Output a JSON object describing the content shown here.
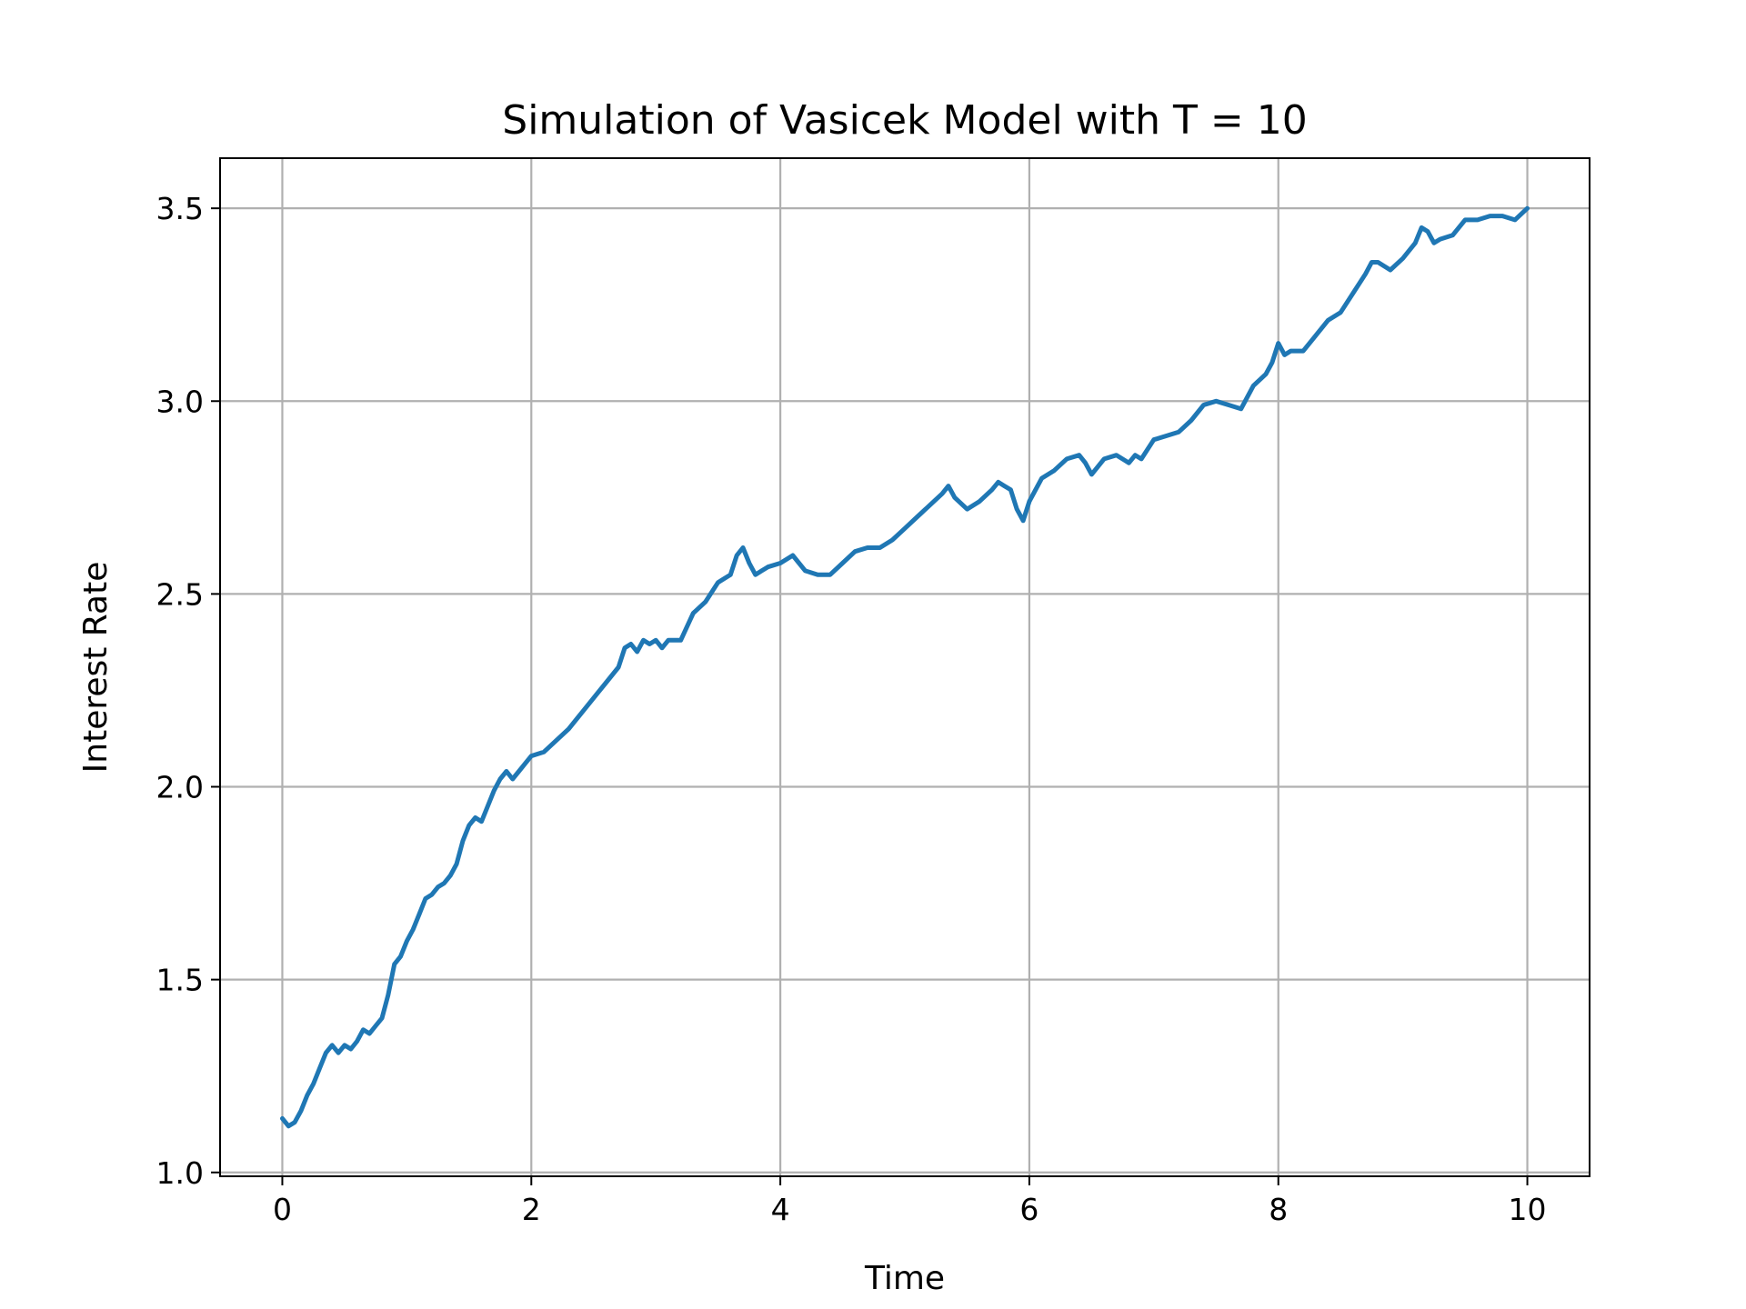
{
  "chart_data": {
    "type": "line",
    "title": "Simulation of Vasicek Model with T = 10",
    "xlabel": "Time",
    "ylabel": "Interest Rate",
    "xlim": [
      -0.5,
      10.5
    ],
    "ylim": [
      0.99,
      3.63
    ],
    "grid": true,
    "x_ticks": [
      {
        "value": 0,
        "label": "0"
      },
      {
        "value": 2,
        "label": "2"
      },
      {
        "value": 4,
        "label": "4"
      },
      {
        "value": 6,
        "label": "6"
      },
      {
        "value": 8,
        "label": "8"
      },
      {
        "value": 10,
        "label": "10"
      }
    ],
    "y_ticks": [
      {
        "value": 1.0,
        "label": "1.0"
      },
      {
        "value": 1.5,
        "label": "1.5"
      },
      {
        "value": 2.0,
        "label": "2.0"
      },
      {
        "value": 2.5,
        "label": "2.5"
      },
      {
        "value": 3.0,
        "label": "3.0"
      },
      {
        "value": 3.5,
        "label": "3.5"
      }
    ],
    "series": [
      {
        "color": "#1f77b4",
        "x": [
          0,
          0.05,
          0.1,
          0.15,
          0.2,
          0.25,
          0.3,
          0.35,
          0.4,
          0.45,
          0.5,
          0.55,
          0.6,
          0.65,
          0.7,
          0.75,
          0.8,
          0.85,
          0.9,
          0.95,
          1.0,
          1.05,
          1.1,
          1.15,
          1.2,
          1.25,
          1.3,
          1.35,
          1.4,
          1.45,
          1.5,
          1.55,
          1.6,
          1.65,
          1.7,
          1.75,
          1.8,
          1.85,
          1.9,
          1.95,
          2.0,
          2.1,
          2.2,
          2.3,
          2.4,
          2.5,
          2.6,
          2.7,
          2.75,
          2.8,
          2.85,
          2.9,
          2.95,
          3.0,
          3.05,
          3.1,
          3.2,
          3.3,
          3.4,
          3.5,
          3.6,
          3.65,
          3.7,
          3.75,
          3.8,
          3.85,
          3.9,
          4.0,
          4.1,
          4.2,
          4.3,
          4.4,
          4.5,
          4.6,
          4.7,
          4.8,
          4.9,
          5.0,
          5.1,
          5.2,
          5.3,
          5.35,
          5.4,
          5.5,
          5.6,
          5.7,
          5.75,
          5.8,
          5.85,
          5.9,
          5.95,
          6.0,
          6.1,
          6.2,
          6.3,
          6.4,
          6.45,
          6.5,
          6.6,
          6.7,
          6.8,
          6.85,
          6.9,
          7.0,
          7.1,
          7.2,
          7.3,
          7.4,
          7.5,
          7.6,
          7.7,
          7.8,
          7.9,
          7.95,
          8.0,
          8.05,
          8.1,
          8.2,
          8.3,
          8.4,
          8.5,
          8.6,
          8.7,
          8.75,
          8.8,
          8.9,
          9.0,
          9.1,
          9.15,
          9.2,
          9.25,
          9.3,
          9.4,
          9.5,
          9.6,
          9.7,
          9.8,
          9.9,
          10.0
        ],
        "y": [
          1.14,
          1.12,
          1.13,
          1.16,
          1.2,
          1.23,
          1.27,
          1.31,
          1.33,
          1.31,
          1.33,
          1.32,
          1.34,
          1.37,
          1.36,
          1.38,
          1.4,
          1.46,
          1.54,
          1.56,
          1.6,
          1.63,
          1.67,
          1.71,
          1.72,
          1.74,
          1.75,
          1.77,
          1.8,
          1.86,
          1.9,
          1.92,
          1.91,
          1.95,
          1.99,
          2.02,
          2.04,
          2.02,
          2.04,
          2.06,
          2.08,
          2.09,
          2.12,
          2.15,
          2.19,
          2.23,
          2.27,
          2.31,
          2.36,
          2.37,
          2.35,
          2.38,
          2.37,
          2.38,
          2.36,
          2.38,
          2.38,
          2.45,
          2.48,
          2.53,
          2.55,
          2.6,
          2.62,
          2.58,
          2.55,
          2.56,
          2.57,
          2.58,
          2.6,
          2.56,
          2.55,
          2.55,
          2.58,
          2.61,
          2.62,
          2.62,
          2.64,
          2.67,
          2.7,
          2.73,
          2.76,
          2.78,
          2.75,
          2.72,
          2.74,
          2.77,
          2.79,
          2.78,
          2.77,
          2.72,
          2.69,
          2.74,
          2.8,
          2.82,
          2.85,
          2.86,
          2.84,
          2.81,
          2.85,
          2.86,
          2.84,
          2.86,
          2.85,
          2.9,
          2.91,
          2.92,
          2.95,
          2.99,
          3.0,
          2.99,
          2.98,
          3.04,
          3.07,
          3.1,
          3.15,
          3.12,
          3.13,
          3.13,
          3.17,
          3.21,
          3.23,
          3.28,
          3.33,
          3.36,
          3.36,
          3.34,
          3.37,
          3.41,
          3.45,
          3.44,
          3.41,
          3.42,
          3.43,
          3.47,
          3.47,
          3.48,
          3.48,
          3.47,
          3.5
        ]
      }
    ]
  }
}
